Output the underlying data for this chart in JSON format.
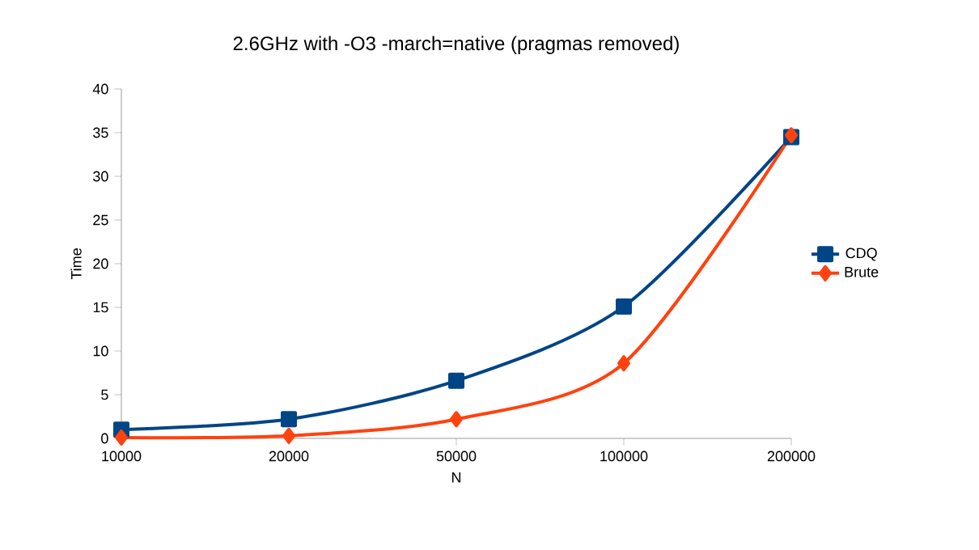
{
  "chart_data": {
    "type": "line",
    "title": "2.6GHz with -O3 -march=native (pragmas removed)",
    "xlabel": "N",
    "ylabel": "Time",
    "categories": [
      "10000",
      "20000",
      "50000",
      "100000",
      "200000"
    ],
    "series": [
      {
        "name": "CDQ",
        "color": "#004586",
        "marker": "square",
        "values": [
          1.0,
          2.2,
          6.6,
          15.1,
          34.5
        ]
      },
      {
        "name": "Brute",
        "color": "#ff420e",
        "marker": "diamond",
        "values": [
          0.1,
          0.3,
          2.2,
          8.6,
          34.7
        ]
      }
    ],
    "ylim": [
      0,
      40
    ],
    "yticks": [
      0,
      5,
      10,
      15,
      20,
      25,
      30,
      35,
      40
    ],
    "legend": "right",
    "grid": false,
    "line_style": "solid"
  }
}
